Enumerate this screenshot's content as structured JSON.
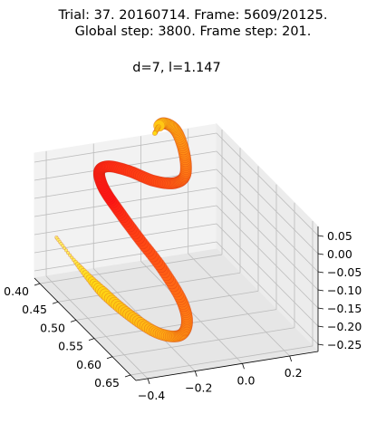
{
  "chart_data": {
    "type": "line3d",
    "title_line1": "Trial: 37. 20160714. Frame: 5609/20125.",
    "title_line2": "Global step: 3800. Frame step: 201.",
    "subtitle": "d=7, l=1.147",
    "grid": true,
    "x_ticks": [
      "0.40",
      "0.45",
      "0.50",
      "0.55",
      "0.60",
      "0.65"
    ],
    "y_ticks": [
      "−0.4",
      "−0.2",
      "0.0",
      "0.2"
    ],
    "z_ticks": [
      "0.05",
      "0.00",
      "−0.05",
      "−0.10",
      "−0.15",
      "−0.20",
      "−0.25"
    ],
    "series": [
      {
        "colormap": "autumn",
        "points": [
          {
            "x": 0.4,
            "y": -0.38,
            "z": -0.15
          },
          {
            "x": 0.44,
            "y": -0.36,
            "z": -0.18
          },
          {
            "x": 0.49,
            "y": -0.33,
            "z": -0.21
          },
          {
            "x": 0.54,
            "y": -0.29,
            "z": -0.23
          },
          {
            "x": 0.585,
            "y": -0.24,
            "z": -0.24
          },
          {
            "x": 0.61,
            "y": -0.185,
            "z": -0.23
          },
          {
            "x": 0.61,
            "y": -0.15,
            "z": -0.2
          },
          {
            "x": 0.59,
            "y": -0.14,
            "z": -0.16
          },
          {
            "x": 0.55,
            "y": -0.16,
            "z": -0.11
          },
          {
            "x": 0.51,
            "y": -0.2,
            "z": -0.06
          },
          {
            "x": 0.48,
            "y": -0.24,
            "z": -0.01
          },
          {
            "x": 0.455,
            "y": -0.265,
            "z": 0.03
          },
          {
            "x": 0.44,
            "y": -0.26,
            "z": 0.06
          },
          {
            "x": 0.44,
            "y": -0.22,
            "z": 0.07
          },
          {
            "x": 0.45,
            "y": -0.15,
            "z": 0.06
          },
          {
            "x": 0.465,
            "y": -0.07,
            "z": 0.04
          },
          {
            "x": 0.47,
            "y": 0.01,
            "z": 0.03
          },
          {
            "x": 0.455,
            "y": 0.08,
            "z": 0.03
          },
          {
            "x": 0.42,
            "y": 0.13,
            "z": 0.05
          },
          {
            "x": 0.38,
            "y": 0.155,
            "z": 0.07
          },
          {
            "x": 0.35,
            "y": 0.145,
            "z": 0.06
          },
          {
            "x": 0.345,
            "y": 0.12,
            "z": 0.03
          }
        ]
      }
    ]
  }
}
